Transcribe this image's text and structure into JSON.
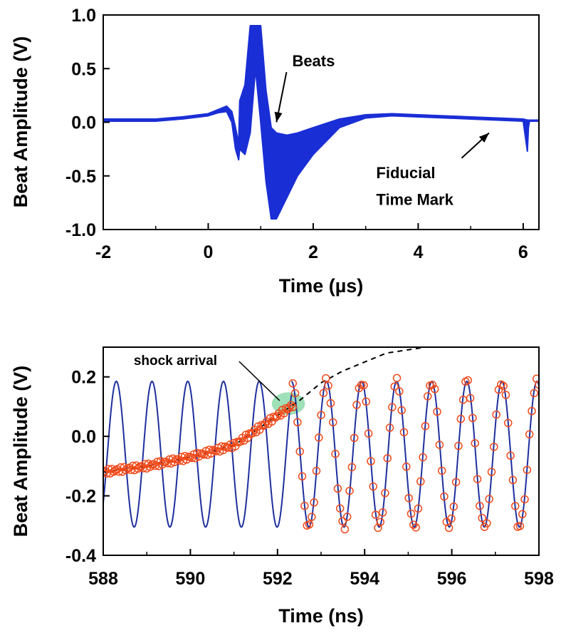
{
  "colors": {
    "signal": "#1a2ed6",
    "fit": "#1f2f9e",
    "markers": "#f04a1a",
    "dashed": "#000000",
    "highlight": "#7ed6a0"
  },
  "chart_data": [
    {
      "type": "line",
      "xlabel": "Time (µs)",
      "ylabel": "Beat Amplitude (V)",
      "xlim": [
        -2,
        6.3
      ],
      "ylim": [
        -1.0,
        1.0
      ],
      "xticks": [
        "-2",
        "0",
        "2",
        "4",
        "6"
      ],
      "yticks": [
        "1.0",
        "0.5",
        "0.0",
        "-0.5",
        "-1.0"
      ],
      "grid": false,
      "series": [
        {
          "x": [
            -2.0,
            -1.0,
            -0.5,
            0.0,
            0.2,
            0.35,
            0.45,
            0.52,
            0.58,
            0.6,
            0.7,
            0.8,
            0.9,
            1.0,
            1.1,
            1.2,
            1.3,
            1.5,
            1.7,
            2.0,
            2.5,
            3.0,
            3.5,
            4.0,
            4.5,
            5.0,
            5.5,
            6.0,
            6.08,
            6.1,
            6.12,
            6.3
          ],
          "y_upper": [
            0.03,
            0.03,
            0.05,
            0.08,
            0.12,
            0.15,
            0.1,
            -0.05,
            -0.2,
            0.2,
            0.35,
            0.9,
            0.9,
            0.9,
            0.3,
            -0.05,
            -0.1,
            -0.12,
            -0.1,
            -0.05,
            0.03,
            0.07,
            0.08,
            0.07,
            0.06,
            0.05,
            0.04,
            0.03,
            0.02,
            0.02,
            0.02,
            0.02
          ],
          "y_lower": [
            0.01,
            0.01,
            0.03,
            0.06,
            0.09,
            0.1,
            0.0,
            -0.25,
            -0.35,
            -0.25,
            -0.3,
            -0.1,
            0.5,
            0.0,
            -0.55,
            -0.9,
            -0.9,
            -0.7,
            -0.5,
            -0.3,
            -0.05,
            0.04,
            0.06,
            0.05,
            0.04,
            0.03,
            0.02,
            0.01,
            -0.27,
            -0.05,
            0.01,
            0.01
          ]
        }
      ],
      "annotations": [
        {
          "text": "Beats",
          "x": 1.6,
          "y": 0.52,
          "arrow_to": [
            1.3,
            0.0
          ]
        },
        {
          "text": "Fiducial",
          "x": 3.2,
          "y": -0.52,
          "arrow_to": [
            5.35,
            -0.1
          ]
        },
        {
          "text": "Time Mark",
          "x": 3.2,
          "y": -0.77
        }
      ]
    },
    {
      "type": "line",
      "xlabel": "Time (ns)",
      "ylabel": "Beat Amplitude (V)",
      "xlim": [
        588,
        598
      ],
      "ylim": [
        -0.4,
        0.3
      ],
      "xticks": [
        "588",
        "590",
        "592",
        "594",
        "596",
        "598"
      ],
      "yticks": [
        "0.2",
        "0.0",
        "-0.2",
        "-0.4"
      ],
      "grid": false,
      "fit_before": {
        "x_start": 588.0,
        "x_end": 592.32,
        "center": -0.06,
        "amplitude": 0.245,
        "period": 0.82,
        "peak_at": 588.3
      },
      "fit_after": {
        "x_start": 592.32,
        "x_end": 598.0,
        "center": -0.06,
        "amplitude": 0.245,
        "period": 0.805,
        "peak_at": 592.32
      },
      "trend": {
        "x": [
          588.0,
          589.0,
          590.0,
          591.0,
          592.0,
          592.5,
          593.0,
          593.5,
          594.0,
          594.5,
          595.4
        ],
        "y": [
          -0.12,
          -0.1,
          -0.07,
          -0.03,
          0.07,
          0.12,
          0.18,
          0.22,
          0.25,
          0.28,
          0.3
        ]
      },
      "scatter_before": {
        "x_start": 588.0,
        "x_end": 592.35,
        "count": 110
      },
      "scatter_after": {
        "x_start": 592.35,
        "x_end": 598.0,
        "count": 105
      },
      "highlight_region": {
        "center": [
          592.25,
          0.11
        ],
        "radius_x": 0.38,
        "radius_y": 0.038
      },
      "annotations": [
        {
          "text": "shock arrival",
          "x": 588.7,
          "y": 0.24,
          "arrow_to": [
            592.05,
            0.12
          ]
        }
      ]
    }
  ]
}
